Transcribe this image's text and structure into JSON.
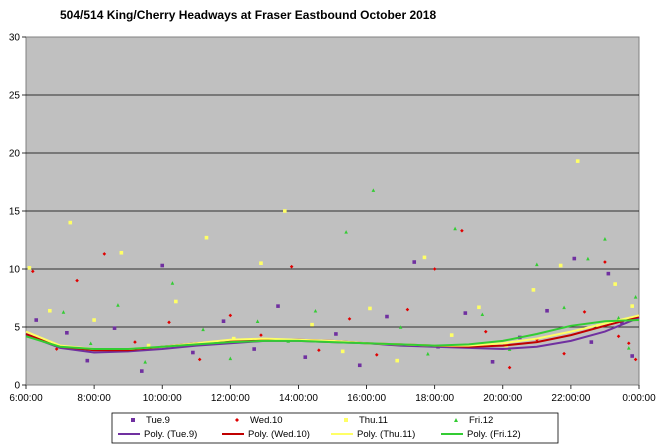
{
  "chart_data": {
    "type": "scatter",
    "title": "504/514 King/Cherry Headways at Fraser Eastbound October 2018",
    "xlabel": "",
    "ylabel": "",
    "x_ticks": [
      "6:00:00",
      "8:00:00",
      "10:00:00",
      "12:00:00",
      "14:00:00",
      "16:00:00",
      "18:00:00",
      "20:00:00",
      "22:00:00",
      "0:00:00"
    ],
    "y_ticks": [
      0,
      5,
      10,
      15,
      20,
      25,
      30
    ],
    "xlim_hours": [
      6,
      24
    ],
    "ylim": [
      0,
      30
    ],
    "grid": "horizontal",
    "legend_position": "bottom",
    "plot_background": "#c0c0c0",
    "series": [
      {
        "name": "Tue.9",
        "kind": "scatter",
        "color": "#7030a0",
        "marker": "square",
        "points": [
          [
            6.3,
            5.6
          ],
          [
            7.2,
            4.5
          ],
          [
            7.8,
            2.1
          ],
          [
            8.6,
            4.9
          ],
          [
            9.4,
            1.2
          ],
          [
            10.0,
            10.3
          ],
          [
            10.9,
            2.8
          ],
          [
            11.8,
            5.5
          ],
          [
            12.7,
            3.1
          ],
          [
            13.4,
            6.8
          ],
          [
            14.2,
            2.4
          ],
          [
            15.1,
            4.4
          ],
          [
            15.8,
            1.7
          ],
          [
            16.6,
            5.9
          ],
          [
            17.4,
            10.6
          ],
          [
            18.1,
            3.3
          ],
          [
            18.9,
            6.2
          ],
          [
            19.7,
            2.0
          ],
          [
            20.5,
            4.1
          ],
          [
            21.3,
            6.4
          ],
          [
            22.1,
            10.9
          ],
          [
            22.6,
            3.7
          ],
          [
            23.1,
            9.6
          ],
          [
            23.5,
            5.4
          ],
          [
            23.8,
            2.5
          ]
        ]
      },
      {
        "name": "Wed.10",
        "kind": "scatter",
        "color": "#e00000",
        "marker": "diamond",
        "points": [
          [
            6.2,
            9.8
          ],
          [
            6.9,
            3.1
          ],
          [
            7.5,
            9.0
          ],
          [
            8.3,
            11.3
          ],
          [
            9.2,
            3.7
          ],
          [
            10.2,
            5.4
          ],
          [
            11.1,
            2.2
          ],
          [
            12.0,
            6.0
          ],
          [
            12.9,
            4.3
          ],
          [
            13.8,
            10.2
          ],
          [
            14.6,
            3.0
          ],
          [
            15.5,
            5.7
          ],
          [
            16.3,
            2.6
          ],
          [
            17.2,
            6.5
          ],
          [
            18.0,
            10.0
          ],
          [
            18.8,
            13.3
          ],
          [
            19.5,
            4.6
          ],
          [
            20.2,
            1.5
          ],
          [
            21.0,
            3.9
          ],
          [
            21.8,
            2.7
          ],
          [
            22.4,
            6.3
          ],
          [
            23.0,
            10.6
          ],
          [
            23.4,
            4.2
          ],
          [
            23.7,
            3.6
          ],
          [
            23.9,
            2.2
          ]
        ]
      },
      {
        "name": "Thu.11",
        "kind": "scatter",
        "color": "#ffff66",
        "marker": "square",
        "points": [
          [
            6.1,
            10.1
          ],
          [
            6.7,
            6.4
          ],
          [
            7.3,
            14.0
          ],
          [
            8.0,
            5.6
          ],
          [
            8.8,
            11.4
          ],
          [
            9.6,
            3.4
          ],
          [
            10.4,
            7.2
          ],
          [
            11.3,
            12.7
          ],
          [
            12.1,
            4.0
          ],
          [
            12.9,
            10.5
          ],
          [
            13.6,
            15.0
          ],
          [
            14.4,
            5.2
          ],
          [
            15.3,
            2.9
          ],
          [
            16.1,
            6.6
          ],
          [
            16.9,
            2.1
          ],
          [
            17.7,
            11.0
          ],
          [
            18.5,
            4.3
          ],
          [
            19.3,
            6.7
          ],
          [
            20.1,
            3.4
          ],
          [
            20.9,
            8.2
          ],
          [
            21.7,
            10.3
          ],
          [
            22.2,
            19.3
          ],
          [
            22.8,
            5.1
          ],
          [
            23.3,
            8.7
          ],
          [
            23.8,
            6.8
          ]
        ]
      },
      {
        "name": "Fri.12",
        "kind": "scatter",
        "color": "#33cc33",
        "marker": "triangle",
        "points": [
          [
            6.4,
            4.1
          ],
          [
            7.1,
            6.3
          ],
          [
            7.9,
            3.6
          ],
          [
            8.7,
            6.9
          ],
          [
            9.5,
            2.0
          ],
          [
            10.3,
            8.8
          ],
          [
            11.2,
            4.8
          ],
          [
            12.0,
            2.3
          ],
          [
            12.8,
            5.5
          ],
          [
            13.7,
            3.8
          ],
          [
            14.5,
            6.4
          ],
          [
            15.4,
            13.2
          ],
          [
            16.2,
            16.8
          ],
          [
            17.0,
            5.0
          ],
          [
            17.8,
            2.7
          ],
          [
            18.6,
            13.5
          ],
          [
            19.4,
            6.1
          ],
          [
            20.2,
            3.1
          ],
          [
            21.0,
            10.4
          ],
          [
            21.8,
            6.7
          ],
          [
            22.5,
            10.9
          ],
          [
            23.0,
            12.6
          ],
          [
            23.4,
            5.8
          ],
          [
            23.7,
            3.2
          ],
          [
            23.9,
            7.6
          ]
        ]
      },
      {
        "name": "Poly. (Tue.9)",
        "kind": "trend",
        "color": "#7030a0",
        "points": [
          [
            6,
            4.3
          ],
          [
            7,
            3.2
          ],
          [
            8,
            2.8
          ],
          [
            9,
            2.9
          ],
          [
            10,
            3.1
          ],
          [
            11,
            3.4
          ],
          [
            12,
            3.6
          ],
          [
            13,
            3.8
          ],
          [
            14,
            3.8
          ],
          [
            15,
            3.7
          ],
          [
            16,
            3.6
          ],
          [
            17,
            3.4
          ],
          [
            18,
            3.3
          ],
          [
            19,
            3.2
          ],
          [
            20,
            3.1
          ],
          [
            21,
            3.3
          ],
          [
            22,
            3.8
          ],
          [
            23,
            4.6
          ],
          [
            24,
            5.8
          ]
        ]
      },
      {
        "name": "Poly. (Wed.10)",
        "kind": "trend",
        "color": "#c00000",
        "points": [
          [
            6,
            4.4
          ],
          [
            7,
            3.3
          ],
          [
            8,
            3.0
          ],
          [
            9,
            3.0
          ],
          [
            10,
            3.3
          ],
          [
            11,
            3.6
          ],
          [
            12,
            3.8
          ],
          [
            13,
            3.9
          ],
          [
            14,
            3.9
          ],
          [
            15,
            3.8
          ],
          [
            16,
            3.6
          ],
          [
            17,
            3.5
          ],
          [
            18,
            3.4
          ],
          [
            19,
            3.3
          ],
          [
            20,
            3.4
          ],
          [
            21,
            3.7
          ],
          [
            22,
            4.3
          ],
          [
            23,
            5.1
          ],
          [
            24,
            5.9
          ]
        ]
      },
      {
        "name": "Poly. (Thu.11)",
        "kind": "trend",
        "color": "#ffff66",
        "points": [
          [
            6,
            4.6
          ],
          [
            7,
            3.4
          ],
          [
            8,
            3.1
          ],
          [
            9,
            3.1
          ],
          [
            10,
            3.3
          ],
          [
            11,
            3.6
          ],
          [
            12,
            3.9
          ],
          [
            13,
            4.0
          ],
          [
            14,
            3.9
          ],
          [
            15,
            3.8
          ],
          [
            16,
            3.6
          ],
          [
            17,
            3.5
          ],
          [
            18,
            3.4
          ],
          [
            19,
            3.4
          ],
          [
            20,
            3.6
          ],
          [
            21,
            4.0
          ],
          [
            22,
            4.6
          ],
          [
            23,
            5.3
          ],
          [
            24,
            6.0
          ]
        ]
      },
      {
        "name": "Poly. (Fri.12)",
        "kind": "trend",
        "color": "#33cc33",
        "points": [
          [
            6,
            4.2
          ],
          [
            7,
            3.3
          ],
          [
            8,
            3.1
          ],
          [
            9,
            3.1
          ],
          [
            10,
            3.3
          ],
          [
            11,
            3.5
          ],
          [
            12,
            3.7
          ],
          [
            13,
            3.8
          ],
          [
            14,
            3.8
          ],
          [
            15,
            3.7
          ],
          [
            16,
            3.6
          ],
          [
            17,
            3.5
          ],
          [
            18,
            3.4
          ],
          [
            19,
            3.5
          ],
          [
            20,
            3.8
          ],
          [
            21,
            4.4
          ],
          [
            22,
            5.1
          ],
          [
            23,
            5.5
          ],
          [
            24,
            5.6
          ]
        ]
      }
    ]
  }
}
